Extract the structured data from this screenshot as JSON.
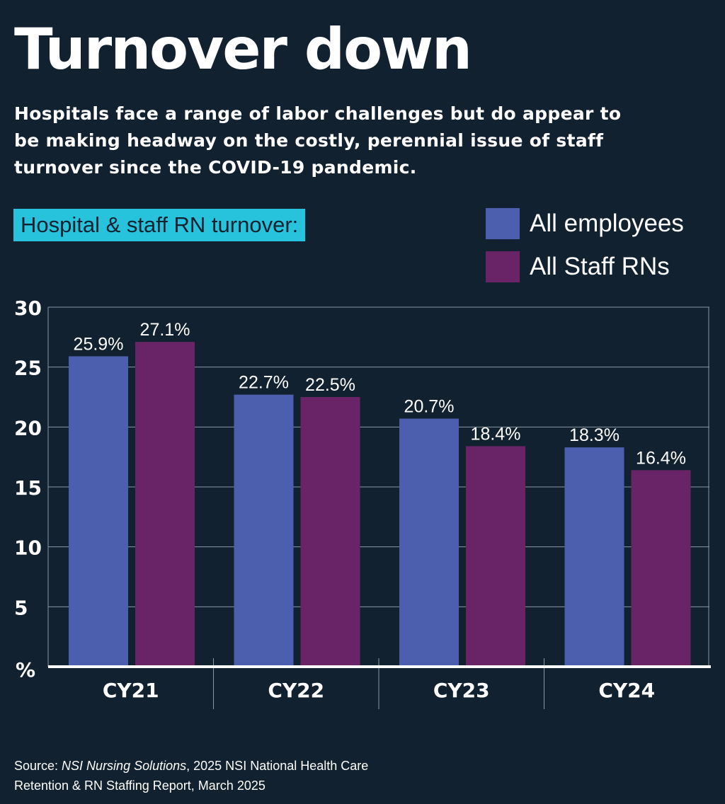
{
  "title": "Turnover down",
  "subtitle": "Hospitals face a range of labor challenges but do appear to be making headway on the costly, perennial issue of staff turnover since the COVID-19 pandemic.",
  "chart_label": "Hospital & staff RN turnover:",
  "source": {
    "prefix": "Source: ",
    "italic": "NSI Nursing Solutions",
    "rest": ", 2025 NSI National Health Care",
    "line2": "Retention & RN Staffing Report, March 2025"
  },
  "chart_data": {
    "type": "bar",
    "categories": [
      "CY21",
      "CY22",
      "CY23",
      "CY24"
    ],
    "series": [
      {
        "name": "All employees",
        "color": "#4b5fae",
        "values": [
          25.9,
          22.7,
          20.7,
          18.3
        ],
        "labels": [
          "25.9%",
          "22.7%",
          "20.7%",
          "18.3%"
        ]
      },
      {
        "name": "All Staff RNs",
        "color": "#682466",
        "values": [
          27.1,
          22.5,
          18.4,
          16.4
        ],
        "labels": [
          "27.1%",
          "22.5%",
          "18.4%",
          "16.4%"
        ]
      }
    ],
    "ylabel": "%",
    "ylim": [
      0,
      30
    ],
    "yticks": [
      "5",
      "10",
      "15",
      "20",
      "25",
      "30"
    ],
    "grid": true,
    "legend": "top-right"
  }
}
